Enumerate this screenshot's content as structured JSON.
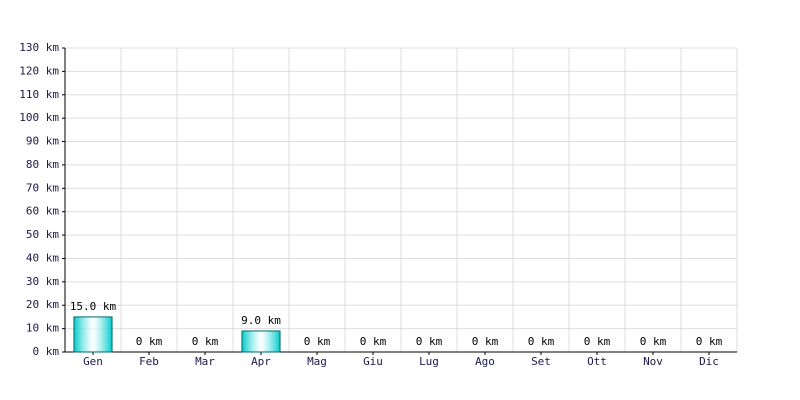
{
  "chart_data": {
    "type": "bar",
    "categories": [
      "Gen",
      "Feb",
      "Mar",
      "Apr",
      "Mag",
      "Giu",
      "Lug",
      "Ago",
      "Set",
      "Ott",
      "Nov",
      "Dic"
    ],
    "values": [
      15,
      0,
      0,
      9,
      0,
      0,
      0,
      0,
      0,
      0,
      0,
      0
    ],
    "value_labels": [
      "15.0 km",
      "0 km",
      "0 km",
      "9.0 km",
      "0 km",
      "0 km",
      "0 km",
      "0 km",
      "0 km",
      "0 km",
      "0 km",
      "0 km"
    ],
    "color": "#00cccc",
    "ylim": [
      0,
      130
    ],
    "yticks": [
      {
        "value": 0,
        "label": "0 km"
      },
      {
        "value": 10,
        "label": "10 km"
      },
      {
        "value": 20,
        "label": "20 km"
      },
      {
        "value": 30,
        "label": "30 km"
      },
      {
        "value": 40,
        "label": "40 km"
      },
      {
        "value": 50,
        "label": "50 km"
      },
      {
        "value": 60,
        "label": "60 km"
      },
      {
        "value": 70,
        "label": "70 km"
      },
      {
        "value": 80,
        "label": "80 km"
      },
      {
        "value": 90,
        "label": "90 km"
      },
      {
        "value": 100,
        "label": "100 km"
      },
      {
        "value": 110,
        "label": "110 km"
      },
      {
        "value": 120,
        "label": "120 km"
      },
      {
        "value": 130,
        "label": "130 km"
      }
    ],
    "grid": true
  }
}
